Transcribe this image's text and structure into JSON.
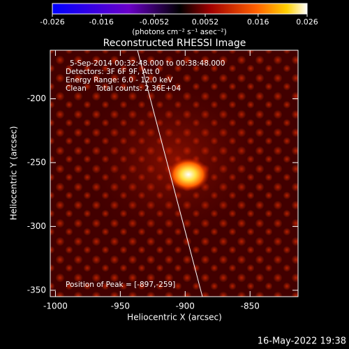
{
  "chart_data": {
    "type": "image",
    "title": "Reconstructed RHESSI Image",
    "xlabel": "Heliocentric X (arcsec)",
    "ylabel": "Heliocentric Y (arcsec)",
    "xlim": [
      -1004,
      -813
    ],
    "xticks": [
      -1000,
      -950,
      -900,
      -850
    ],
    "ylim": [
      -355,
      -162
    ],
    "yticks": [
      -350,
      -300,
      -250,
      -200
    ],
    "annotations": [
      "5-Sep-2014 00:32:48.000 to 00:38:48.000",
      "Detectors: 3F 6F 9F, Att 0",
      "Energy Range: 6.0 - 12.0 keV",
      "Clean    Total counts: 2.36E+04"
    ],
    "peak_label": "Position of Peak = [-897,-259]",
    "colorbar": {
      "label": "(photons cm⁻² s⁻¹ asec⁻²)",
      "lim": [
        -0.026,
        0.026
      ],
      "ticks": [
        -0.026,
        -0.016,
        -0.0052,
        0.0052,
        0.016,
        0.026
      ]
    }
  },
  "footer": "16-May-2022 19:38"
}
